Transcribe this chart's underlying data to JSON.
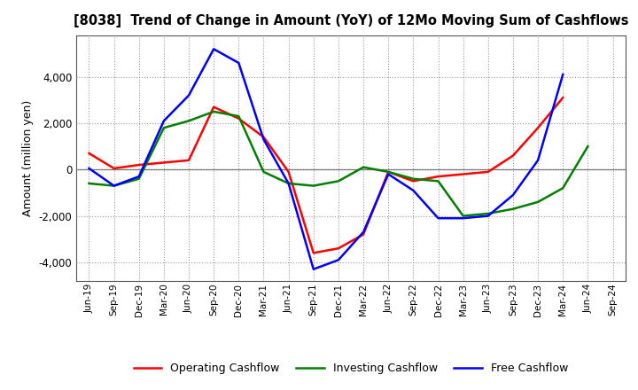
{
  "title": "[8038]  Trend of Change in Amount (YoY) of 12Mo Moving Sum of Cashflows",
  "ylabel": "Amount (million yen)",
  "x_labels": [
    "Jun-19",
    "Sep-19",
    "Dec-19",
    "Mar-20",
    "Jun-20",
    "Sep-20",
    "Dec-20",
    "Mar-21",
    "Jun-21",
    "Sep-21",
    "Dec-21",
    "Mar-22",
    "Jun-22",
    "Sep-22",
    "Dec-22",
    "Mar-23",
    "Jun-23",
    "Sep-23",
    "Dec-23",
    "Mar-24",
    "Jun-24",
    "Sep-24"
  ],
  "operating_cashflow": [
    700,
    50,
    200,
    300,
    400,
    2700,
    2200,
    1400,
    -100,
    -3600,
    -3400,
    -2800,
    -100,
    -500,
    -300,
    -200,
    -100,
    600,
    1800,
    3100,
    null,
    null
  ],
  "investing_cashflow": [
    -600,
    -700,
    -400,
    1800,
    2100,
    2500,
    2300,
    -100,
    -600,
    -700,
    -500,
    100,
    -100,
    -400,
    -500,
    -2000,
    -1900,
    -1700,
    -1400,
    -800,
    1000,
    null
  ],
  "free_cashflow": [
    50,
    -700,
    -300,
    2100,
    3200,
    5200,
    4600,
    1300,
    -600,
    -4300,
    -3900,
    -2700,
    -200,
    -900,
    -2100,
    -2100,
    -2000,
    -1100,
    400,
    4100,
    null,
    null
  ],
  "operating_color": "#ff0000",
  "investing_color": "#008000",
  "free_color": "#0000ff",
  "ylim": [
    -4800,
    5800
  ],
  "yticks": [
    -4000,
    -2000,
    0,
    2000,
    4000
  ],
  "background_color": "#ffffff",
  "grid_color": "#999999"
}
